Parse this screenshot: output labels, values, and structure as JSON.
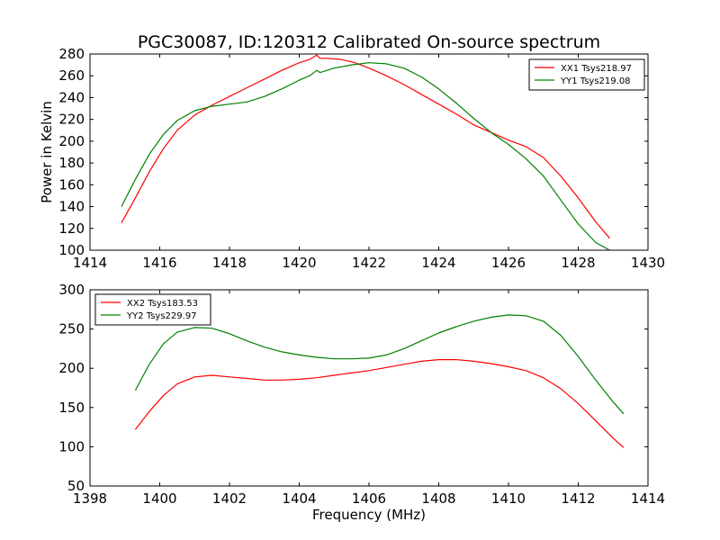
{
  "figure": {
    "title": "PGC30087, ID:120312 Calibrated On-source spectrum",
    "xlabel": "Frequency (MHz)"
  },
  "chart_data": [
    {
      "type": "line",
      "title": "PGC30087, ID:120312 Calibrated On-source spectrum",
      "xlabel": "",
      "ylabel": "Power in Kelvin",
      "xlim": [
        1414,
        1430
      ],
      "ylim": [
        100,
        280
      ],
      "xticks": [
        1414,
        1416,
        1418,
        1420,
        1422,
        1424,
        1426,
        1428,
        1430
      ],
      "yticks": [
        100,
        120,
        140,
        160,
        180,
        200,
        220,
        240,
        260,
        280
      ],
      "grid": false,
      "legend_position": "top-right",
      "series": [
        {
          "name": "XX1 Tsys218.97",
          "color": "#ff0000",
          "x": [
            1414.9,
            1415.3,
            1415.7,
            1416.1,
            1416.5,
            1417.0,
            1417.5,
            1418.0,
            1418.5,
            1419.0,
            1419.5,
            1420.0,
            1420.3,
            1420.5,
            1420.6,
            1420.8,
            1421.2,
            1421.6,
            1422.0,
            1422.5,
            1423.0,
            1423.5,
            1424.0,
            1424.5,
            1425.0,
            1425.5,
            1426.0,
            1426.5,
            1427.0,
            1427.5,
            1428.0,
            1428.5,
            1428.9
          ],
          "values": [
            125,
            148,
            172,
            193,
            210,
            224,
            233,
            241,
            249,
            257,
            265,
            272,
            275,
            279,
            276,
            276,
            275,
            272,
            267,
            260,
            252,
            243,
            234,
            225,
            215,
            208,
            201,
            195,
            185,
            168,
            148,
            126,
            111
          ]
        },
        {
          "name": "YY1 Tsys219.08",
          "color": "#008000",
          "x": [
            1414.9,
            1415.3,
            1415.7,
            1416.1,
            1416.5,
            1417.0,
            1417.5,
            1418.0,
            1418.5,
            1419.0,
            1419.5,
            1420.0,
            1420.3,
            1420.5,
            1420.6,
            1421.0,
            1421.5,
            1422.0,
            1422.5,
            1423.0,
            1423.5,
            1424.0,
            1424.5,
            1425.0,
            1425.5,
            1426.0,
            1426.5,
            1427.0,
            1427.5,
            1428.0,
            1428.5,
            1428.9
          ],
          "values": [
            140,
            165,
            188,
            206,
            219,
            228,
            232,
            234,
            236,
            241,
            248,
            256,
            260,
            265,
            263,
            267,
            270,
            272,
            271,
            267,
            259,
            248,
            235,
            221,
            208,
            197,
            184,
            168,
            146,
            124,
            107,
            100
          ]
        }
      ]
    },
    {
      "type": "line",
      "title": "",
      "xlabel": "Frequency (MHz)",
      "ylabel": "",
      "xlim": [
        1398,
        1414
      ],
      "ylim": [
        50,
        300
      ],
      "xticks": [
        1398,
        1400,
        1402,
        1404,
        1406,
        1408,
        1410,
        1412,
        1414
      ],
      "yticks": [
        50,
        100,
        150,
        200,
        250,
        300
      ],
      "grid": false,
      "legend_position": "top-left",
      "series": [
        {
          "name": "XX2 Tsys183.53",
          "color": "#ff0000",
          "x": [
            1399.3,
            1399.7,
            1400.1,
            1400.5,
            1401.0,
            1401.5,
            1402.0,
            1402.5,
            1403.0,
            1403.5,
            1404.0,
            1404.5,
            1405.0,
            1405.5,
            1406.0,
            1406.5,
            1407.0,
            1407.5,
            1408.0,
            1408.5,
            1409.0,
            1409.5,
            1410.0,
            1410.5,
            1411.0,
            1411.5,
            1412.0,
            1412.5,
            1413.0,
            1413.3
          ],
          "values": [
            122,
            145,
            165,
            180,
            189,
            191,
            189,
            187,
            185,
            185,
            186,
            188,
            191,
            194,
            197,
            201,
            205,
            209,
            211,
            211,
            209,
            206,
            202,
            197,
            188,
            174,
            155,
            133,
            111,
            99
          ]
        },
        {
          "name": "YY2 Tsys229.97",
          "color": "#008000",
          "x": [
            1399.3,
            1399.7,
            1400.1,
            1400.5,
            1401.0,
            1401.5,
            1402.0,
            1402.5,
            1403.0,
            1403.5,
            1404.0,
            1404.5,
            1405.0,
            1405.5,
            1406.0,
            1406.5,
            1407.0,
            1407.5,
            1408.0,
            1408.5,
            1409.0,
            1409.5,
            1410.0,
            1410.5,
            1411.0,
            1411.5,
            1412.0,
            1412.5,
            1413.0,
            1413.3
          ],
          "values": [
            172,
            205,
            231,
            246,
            252,
            251,
            244,
            235,
            227,
            221,
            217,
            214,
            212,
            212,
            213,
            217,
            225,
            235,
            245,
            253,
            260,
            265,
            268,
            267,
            260,
            242,
            215,
            185,
            157,
            142
          ]
        }
      ]
    }
  ]
}
